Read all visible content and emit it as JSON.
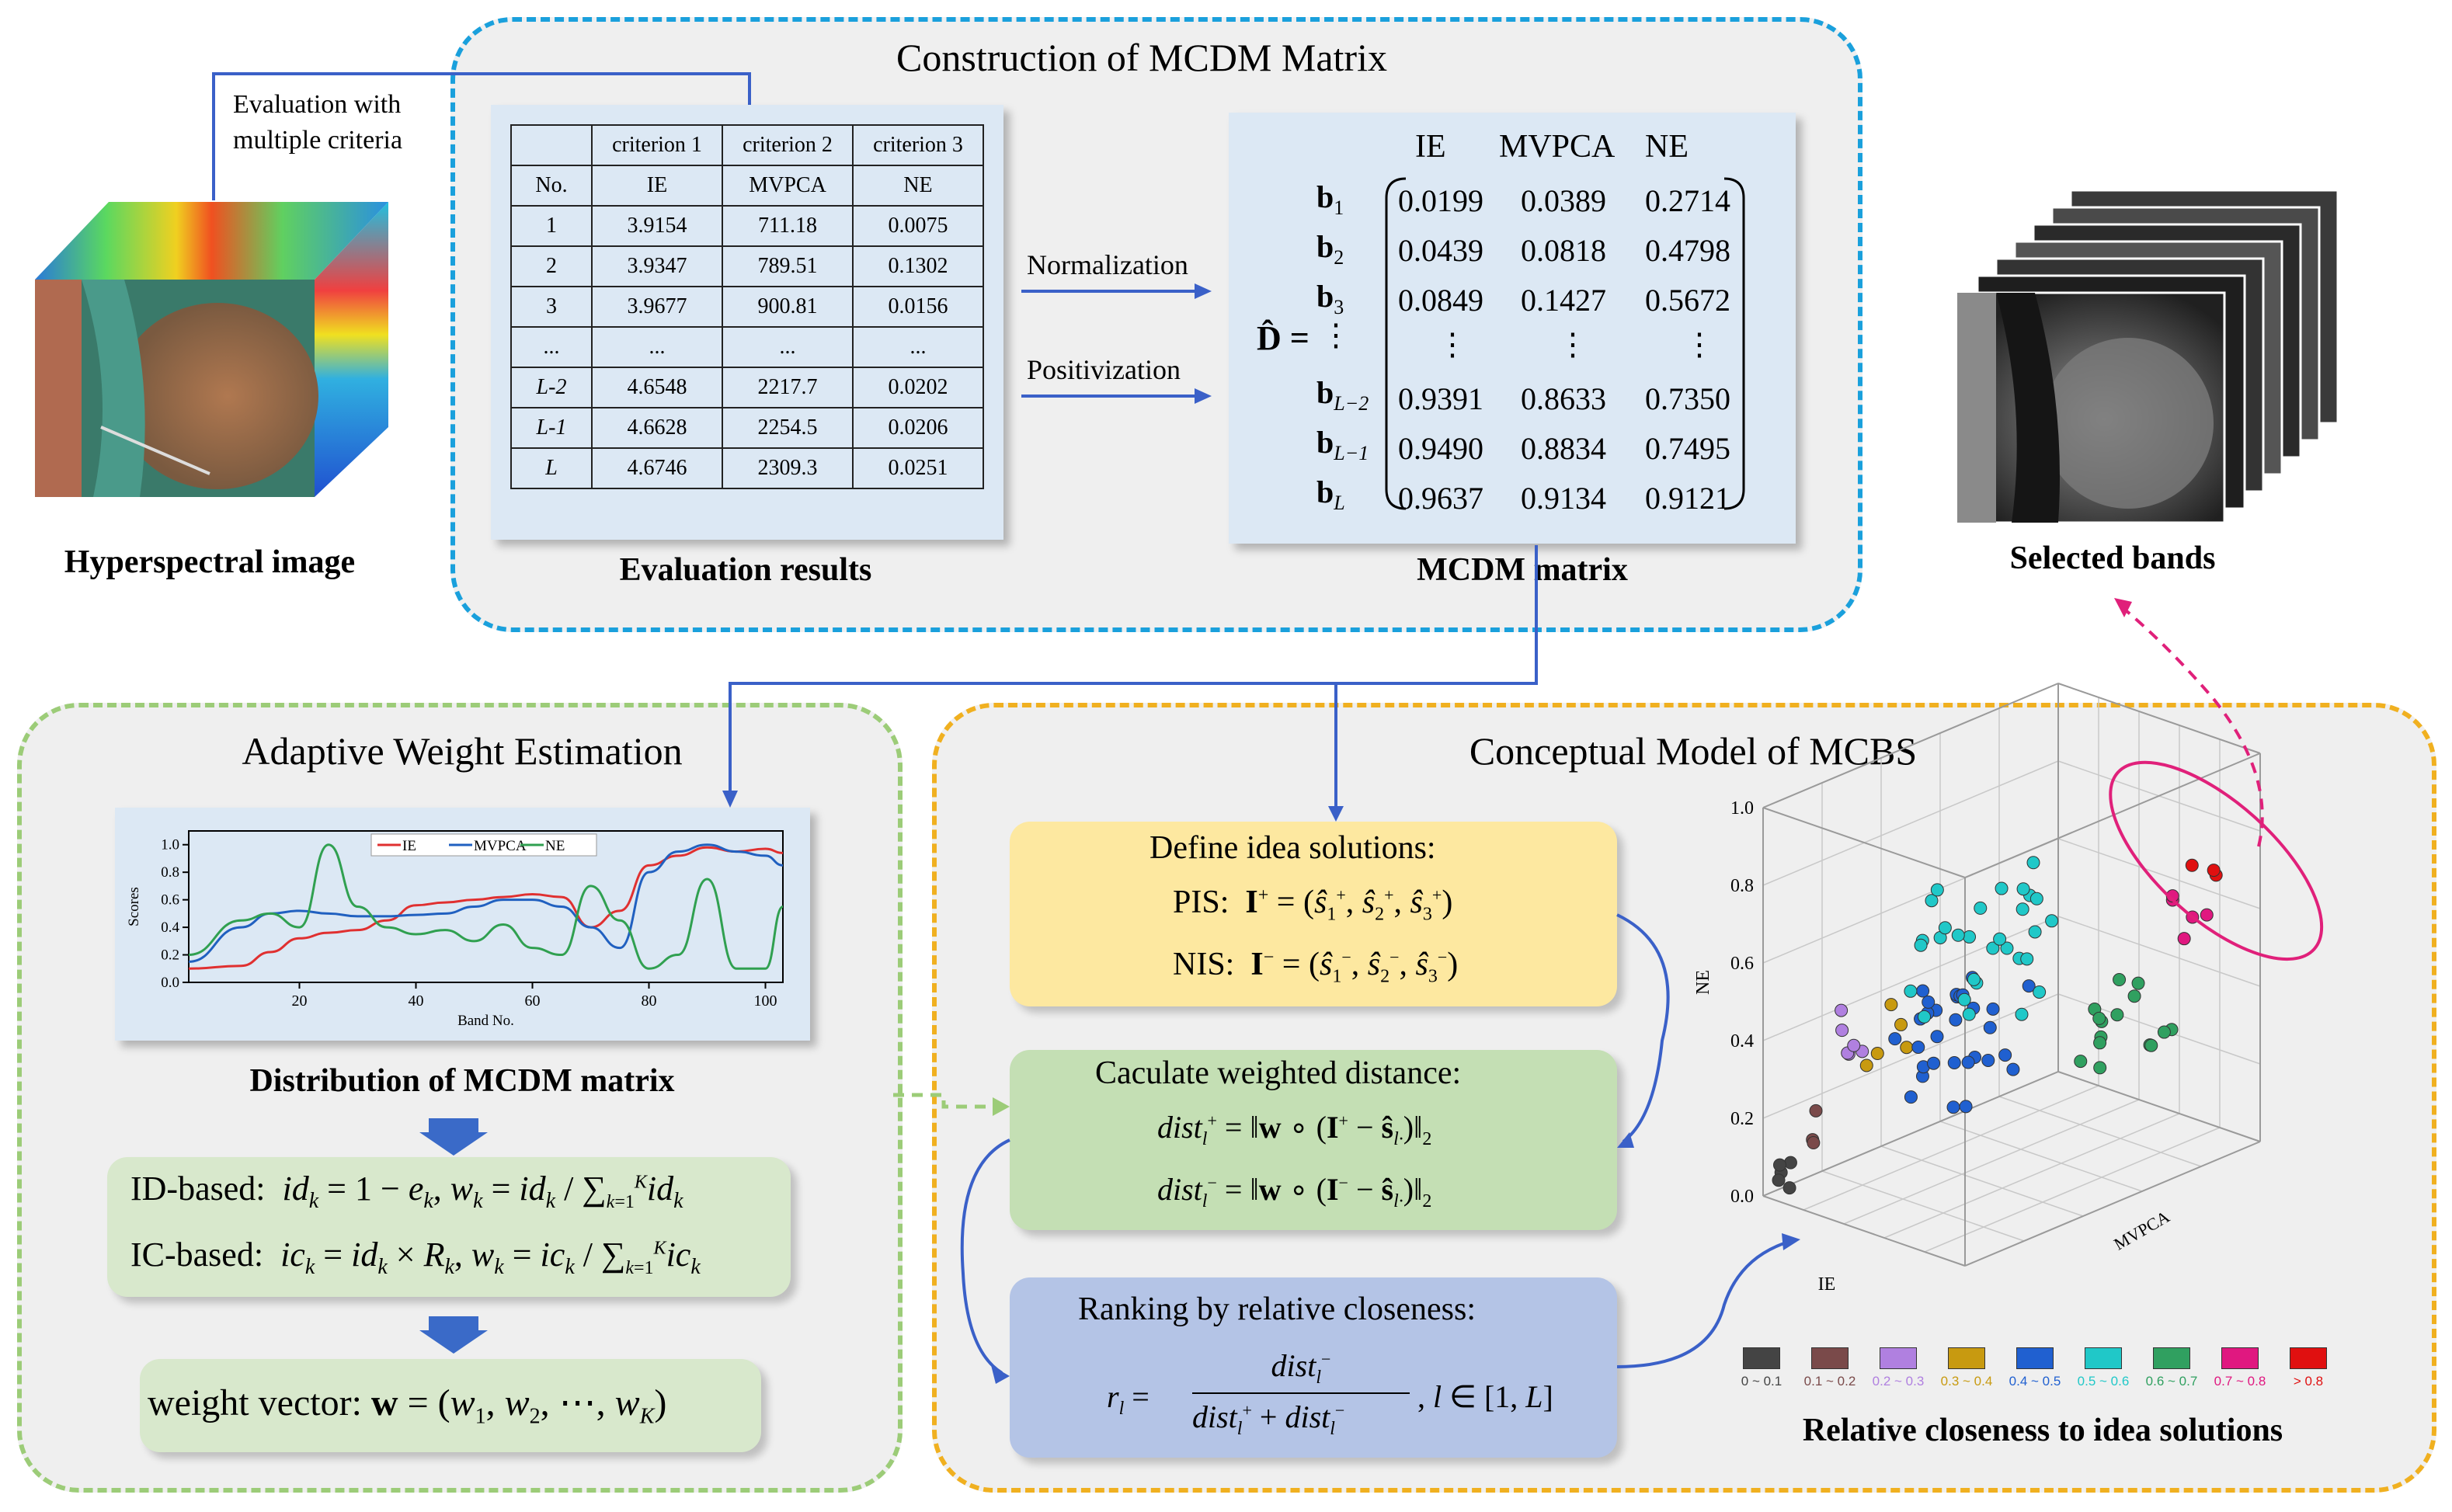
{
  "top_panel": {
    "title": "Construction of MCDM Matrix",
    "eval_caption": "Evaluation results",
    "mcdm_caption": "MCDM matrix",
    "arrow_labels": [
      "Normalization",
      "Positivization"
    ],
    "table": {
      "header": [
        "",
        "criterion 1",
        "criterion 2",
        "criterion 3"
      ],
      "subheader": [
        "No.",
        "IE",
        "MVPCA",
        "NE"
      ],
      "rows": [
        [
          "1",
          "3.9154",
          "711.18",
          "0.0075"
        ],
        [
          "2",
          "3.9347",
          "789.51",
          "0.1302"
        ],
        [
          "3",
          "3.9677",
          "900.81",
          "0.0156"
        ],
        [
          "...",
          "...",
          "...",
          "..."
        ],
        [
          "L-2",
          "4.6548",
          "2217.7",
          "0.0202"
        ],
        [
          "L-1",
          "4.6628",
          "2254.5",
          "0.0206"
        ],
        [
          "L",
          "4.6746",
          "2309.3",
          "0.0251"
        ]
      ]
    },
    "matrix": {
      "symbol": "D̂ =",
      "col_headers": [
        "IE",
        "MVPCA",
        "NE"
      ],
      "rows": [
        {
          "label": "b",
          "sub": "1",
          "values": [
            "0.0199",
            "0.0389",
            "0.2714"
          ]
        },
        {
          "label": "b",
          "sub": "2",
          "values": [
            "0.0439",
            "0.0818",
            "0.4798"
          ]
        },
        {
          "label": "b",
          "sub": "3",
          "values": [
            "0.0849",
            "0.1427",
            "0.5672"
          ]
        },
        {
          "label": "⋮",
          "sub": "",
          "values": [
            "⋮",
            "⋮",
            "⋮"
          ]
        },
        {
          "label": "b",
          "sub": "L−2",
          "values": [
            "0.9391",
            "0.8633",
            "0.7350"
          ]
        },
        {
          "label": "b",
          "sub": "L−1",
          "values": [
            "0.9490",
            "0.8834",
            "0.7495"
          ]
        },
        {
          "label": "b",
          "sub": "L",
          "values": [
            "0.9637",
            "0.9134",
            "0.9121"
          ]
        }
      ]
    }
  },
  "left_top": {
    "eval_text_line1": "Evaluation with",
    "eval_text_line2": "multiple criteria",
    "hsi_caption": "Hyperspectral image"
  },
  "right_top": {
    "bands_caption": "Selected bands"
  },
  "weight_panel": {
    "title": "Adaptive Weight Estimation",
    "dist_caption": "Distribution of MCDM matrix",
    "id_label": "ID-based:",
    "ic_label": "IC-based:",
    "weight_label": "weight vector:",
    "chart_data": {
      "type": "line",
      "xlabel": "Band No.",
      "ylabel": "Scores",
      "xlim": [
        1,
        103
      ],
      "ylim": [
        0,
        1.1
      ],
      "xticks": [
        "20",
        "40",
        "60",
        "80",
        "100"
      ],
      "yticks": [
        "0.0",
        "0.2",
        "0.4",
        "0.6",
        "0.8",
        "1.0"
      ],
      "legend_position": "top-center",
      "x": [
        1,
        10,
        15,
        20,
        25,
        30,
        35,
        40,
        45,
        50,
        55,
        60,
        65,
        70,
        75,
        80,
        85,
        90,
        95,
        100,
        103
      ],
      "series": [
        {
          "name": "IE",
          "color": "#e03030",
          "values": [
            0.1,
            0.12,
            0.22,
            0.32,
            0.36,
            0.38,
            0.45,
            0.56,
            0.58,
            0.6,
            0.62,
            0.64,
            0.62,
            0.4,
            0.52,
            0.85,
            0.92,
            0.98,
            0.95,
            0.97,
            0.94
          ]
        },
        {
          "name": "MVPCA",
          "color": "#2060c0",
          "values": [
            0.15,
            0.4,
            0.5,
            0.52,
            0.5,
            0.48,
            0.48,
            0.49,
            0.5,
            0.55,
            0.6,
            0.6,
            0.55,
            0.4,
            0.25,
            0.8,
            0.95,
            1.0,
            0.95,
            0.92,
            0.85
          ]
        },
        {
          "name": "NE",
          "color": "#30a050",
          "values": [
            0.2,
            0.45,
            0.5,
            0.4,
            1.0,
            0.55,
            0.4,
            0.35,
            0.38,
            0.3,
            0.42,
            0.25,
            0.2,
            0.7,
            0.45,
            0.1,
            0.2,
            0.75,
            0.1,
            0.1,
            0.55
          ]
        }
      ]
    }
  },
  "mcbs_panel": {
    "title": "Conceptual Model of MCBS",
    "define_title": "Define idea solutions:",
    "pis_label": "PIS:",
    "nis_label": "NIS:",
    "calc_title": "Caculate weighted distance:",
    "rank_title": "Ranking by relative closeness:",
    "scatter_caption": "Relative closeness to idea solutions",
    "axes": {
      "z": "NE",
      "x": "IE",
      "y": "MVPCA"
    },
    "z_ticks": [
      "0.0",
      "0.2",
      "0.4",
      "0.6",
      "0.8",
      "1.0"
    ],
    "legend": [
      {
        "label": "0 ~ 0.1",
        "color": "#444444"
      },
      {
        "label": "0.1 ~ 0.2",
        "color": "#7a4a4a"
      },
      {
        "label": "0.2 ~ 0.3",
        "color": "#b080e0"
      },
      {
        "label": "0.3 ~ 0.4",
        "color": "#c89a10"
      },
      {
        "label": "0.4 ~ 0.5",
        "color": "#2060d0"
      },
      {
        "label": "0.5 ~ 0.6",
        "color": "#20c8c8"
      },
      {
        "label": "0.6 ~ 0.7",
        "color": "#30a060"
      },
      {
        "label": "0.7 ~ 0.8",
        "color": "#e01880"
      },
      {
        "label": "> 0.8",
        "color": "#e01010"
      }
    ]
  }
}
